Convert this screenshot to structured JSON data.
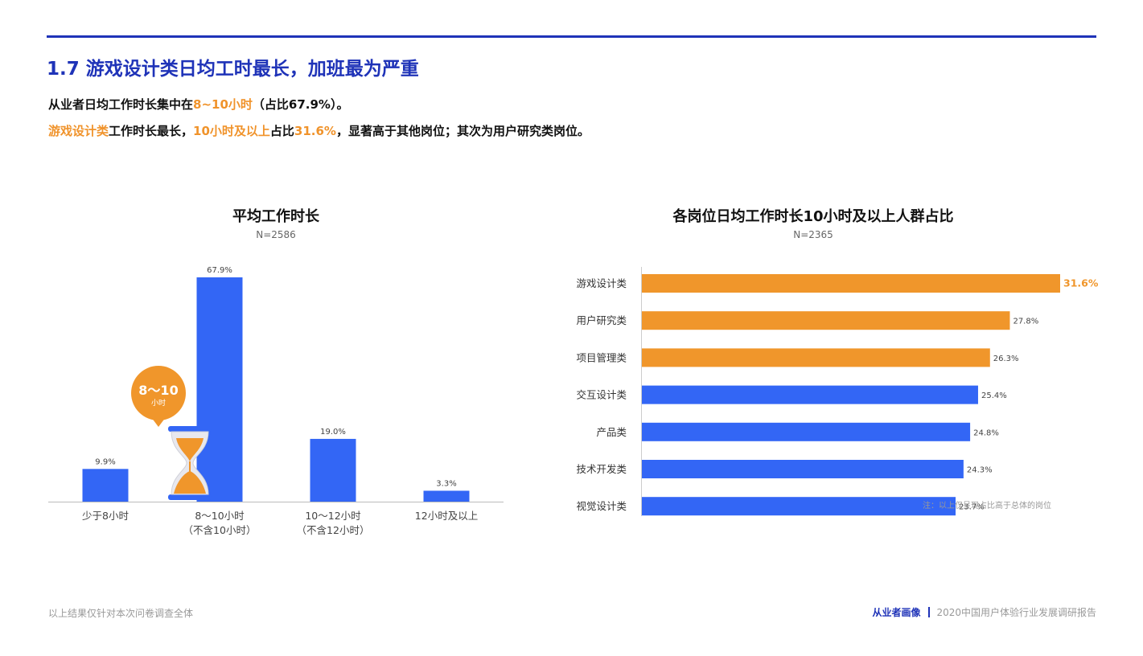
{
  "page": {
    "title": "1.7 游戏设计类日均工时最长，加班最为严重",
    "line1": {
      "a": "从业者日均工作时长集中在",
      "b": "8~10小时",
      "c": "（占比67.9%）。"
    },
    "line2": {
      "a": "游戏设计类",
      "b": "工作时长最长，",
      "c": "10小时及以上",
      "d": "占比",
      "e": "31.6%",
      "f": "，显著高于其他岗位；其次为用户研究类岗位。"
    }
  },
  "badge": {
    "main": "8～10",
    "sub": "小时",
    "icon": "hourglass-icon"
  },
  "colors": {
    "blue": "#3366f5",
    "orange": "#f0962b",
    "title_blue": "#1f33b8"
  },
  "chart_data": [
    {
      "type": "bar",
      "title": "平均工作时长",
      "subtitle": "N=2586",
      "categories": [
        [
          "少于8小时"
        ],
        [
          "8～10小时",
          "（不含10小时）"
        ],
        [
          "10～12小时",
          "（不含12小时）"
        ],
        [
          "12小时及以上"
        ]
      ],
      "values": [
        9.9,
        67.9,
        19.0,
        3.3
      ],
      "value_labels": [
        "9.9%",
        "67.9%",
        "19.0%",
        "3.3%"
      ],
      "ylim": [
        0,
        70
      ]
    },
    {
      "type": "bar",
      "orientation": "horizontal",
      "title": "各岗位日均工作时长10小时及以上人群占比",
      "subtitle": "N=2365",
      "categories": [
        "游戏设计类",
        "用户研究类",
        "项目管理类",
        "交互设计类",
        "产品类",
        "技术开发类",
        "视觉设计类"
      ],
      "values": [
        31.6,
        27.8,
        26.3,
        25.4,
        24.8,
        24.3,
        23.7
      ],
      "value_labels": [
        "31.6%",
        "27.8%",
        "26.3%",
        "25.4%",
        "24.8%",
        "24.3%",
        "23.7%"
      ],
      "highlighted": [
        true,
        true,
        true,
        false,
        false,
        false,
        false
      ],
      "xlim": [
        0,
        31.6
      ],
      "note": "注：以上仅呈现占比高于总体的岗位"
    }
  ],
  "footer": {
    "left": "以上结果仅针对本次问卷调查全体",
    "section": "从业者画像",
    "report": "2020中国用户体验行业发展调研报告"
  }
}
